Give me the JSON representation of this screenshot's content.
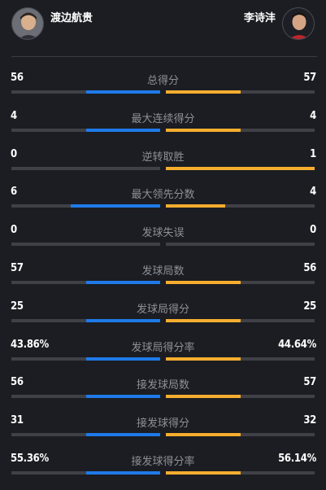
{
  "players": {
    "left": {
      "name": "渡边航贵"
    },
    "right": {
      "name": "李诗沣"
    }
  },
  "colors": {
    "left_bar": "#1f7ae8",
    "right_bar": "#f6ad2f",
    "track": "#3f4147"
  },
  "stats": [
    {
      "label": "总得分",
      "left": "56",
      "right": "57",
      "left_share": 0.5,
      "right_share": 0.5
    },
    {
      "label": "最大连续得分",
      "left": "4",
      "right": "4",
      "left_share": 0.5,
      "right_share": 0.5
    },
    {
      "label": "逆转取胜",
      "left": "0",
      "right": "1",
      "left_share": 0,
      "right_share": 1
    },
    {
      "label": "最大领先分数",
      "left": "6",
      "right": "4",
      "left_share": 0.6,
      "right_share": 0.4
    },
    {
      "label": "发球失误",
      "left": "0",
      "right": "0",
      "left_share": 0,
      "right_share": 0
    },
    {
      "label": "发球局数",
      "left": "57",
      "right": "56",
      "left_share": 0.5,
      "right_share": 0.5
    },
    {
      "label": "发球局得分",
      "left": "25",
      "right": "25",
      "left_share": 0.5,
      "right_share": 0.5
    },
    {
      "label": "发球局得分率",
      "left": "43.86%",
      "right": "44.64%",
      "left_share": 0.5,
      "right_share": 0.5
    },
    {
      "label": "接发球局数",
      "left": "56",
      "right": "57",
      "left_share": 0.5,
      "right_share": 0.5
    },
    {
      "label": "接发球得分",
      "left": "31",
      "right": "32",
      "left_share": 0.5,
      "right_share": 0.5
    },
    {
      "label": "接发球得分率",
      "left": "55.36%",
      "right": "56.14%",
      "left_share": 0.5,
      "right_share": 0.5
    }
  ]
}
